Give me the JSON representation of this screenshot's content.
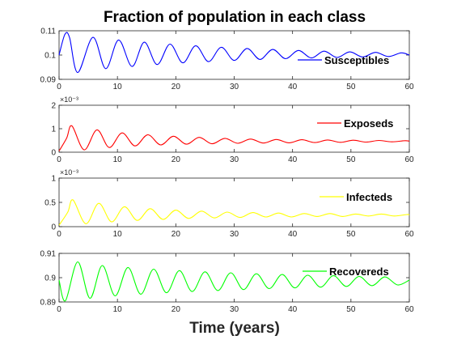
{
  "figure": {
    "title": "Fraction of population in each class",
    "xlabel": "Time (years)"
  },
  "chart_data": [
    {
      "type": "line",
      "title": "",
      "xlabel": "",
      "ylabel": "",
      "xlim": [
        0,
        60
      ],
      "ylim": [
        0.09,
        0.11
      ],
      "x_ticks": [
        "0",
        "10",
        "20",
        "30",
        "40",
        "50",
        "60"
      ],
      "y_ticks": [
        "0.09",
        "0.1",
        "0.11"
      ],
      "y_exponent_label": "",
      "grid": false,
      "legend_position": "right",
      "series": [
        {
          "name": "Susceptibles",
          "color": "#0000ff",
          "x": [
            0,
            1.0,
            1.8,
            3.2,
            5.8,
            8.0,
            10.2,
            12.5,
            14.6,
            16.8,
            19.0,
            21.2,
            23.4,
            25.6,
            27.8,
            30.0,
            32.2,
            34.4,
            36.6,
            38.8,
            41.0,
            43.2,
            45.4,
            47.6,
            49.8,
            52.0,
            54.2,
            56.4,
            58.6,
            60
          ],
          "values": [
            0.1,
            0.1085,
            0.1072,
            0.0928,
            0.1073,
            0.0944,
            0.1062,
            0.0953,
            0.1053,
            0.0961,
            0.1045,
            0.0968,
            0.1038,
            0.0973,
            0.1032,
            0.0978,
            0.1027,
            0.0982,
            0.1023,
            0.0985,
            0.1019,
            0.0988,
            0.1016,
            0.099,
            0.1013,
            0.0992,
            0.1011,
            0.0994,
            0.1009,
            0.1
          ]
        }
      ]
    },
    {
      "type": "line",
      "title": "",
      "xlabel": "",
      "ylabel": "",
      "xlim": [
        0,
        60
      ],
      "ylim": [
        0,
        2
      ],
      "x_ticks": [
        "0",
        "10",
        "20",
        "30",
        "40",
        "50",
        "60"
      ],
      "y_ticks": [
        "0",
        "1",
        "2"
      ],
      "y_exponent_label": "×10⁻³",
      "grid": false,
      "legend_position": "top-right",
      "series": [
        {
          "name": "Exposeds",
          "color": "#ff0000",
          "x": [
            0,
            1.3,
            2.2,
            4.3,
            6.5,
            8.6,
            10.8,
            13.0,
            15.2,
            17.4,
            19.6,
            21.8,
            24.0,
            26.2,
            28.4,
            30.6,
            32.8,
            35.0,
            37.2,
            39.4,
            41.6,
            43.8,
            46.0,
            48.2,
            50.4,
            52.6,
            54.8,
            57.0,
            59.2,
            60
          ],
          "values": [
            0.05,
            0.6,
            1.12,
            0.1,
            0.95,
            0.2,
            0.82,
            0.27,
            0.74,
            0.31,
            0.68,
            0.34,
            0.63,
            0.36,
            0.59,
            0.38,
            0.56,
            0.39,
            0.54,
            0.4,
            0.53,
            0.41,
            0.52,
            0.42,
            0.51,
            0.43,
            0.5,
            0.44,
            0.49,
            0.47
          ]
        }
      ]
    },
    {
      "type": "line",
      "title": "",
      "xlabel": "",
      "ylabel": "",
      "xlim": [
        0,
        60
      ],
      "ylim": [
        0,
        1
      ],
      "x_ticks": [
        "0",
        "10",
        "20",
        "30",
        "40",
        "50",
        "60"
      ],
      "y_ticks": [
        "0",
        "0.5",
        "1"
      ],
      "y_exponent_label": "×10⁻³",
      "grid": false,
      "legend_position": "top-right",
      "series": [
        {
          "name": "Infecteds",
          "color": "#ffff00",
          "x": [
            0,
            1.5,
            2.4,
            4.6,
            6.8,
            9.0,
            11.2,
            13.4,
            15.6,
            17.8,
            20.0,
            22.2,
            24.4,
            26.6,
            28.8,
            31.0,
            33.2,
            35.4,
            37.6,
            39.8,
            42.0,
            44.2,
            46.4,
            48.6,
            50.8,
            53.0,
            55.2,
            57.4,
            59.6,
            60
          ],
          "values": [
            0.03,
            0.3,
            0.55,
            0.06,
            0.48,
            0.1,
            0.41,
            0.13,
            0.37,
            0.15,
            0.34,
            0.17,
            0.32,
            0.18,
            0.3,
            0.19,
            0.29,
            0.2,
            0.28,
            0.2,
            0.27,
            0.21,
            0.27,
            0.21,
            0.26,
            0.22,
            0.26,
            0.22,
            0.25,
            0.24
          ]
        }
      ]
    },
    {
      "type": "line",
      "title": "",
      "xlabel": "",
      "ylabel": "",
      "xlim": [
        0,
        60
      ],
      "ylim": [
        0.89,
        0.91
      ],
      "x_ticks": [
        "0",
        "10",
        "20",
        "30",
        "40",
        "50",
        "60"
      ],
      "y_ticks": [
        "0.89",
        "0.9",
        "0.91"
      ],
      "y_exponent_label": "",
      "grid": false,
      "legend_position": "right",
      "series": [
        {
          "name": "Recovereds",
          "color": "#00ff00",
          "x": [
            0,
            1.1,
            3.2,
            5.3,
            7.4,
            9.6,
            11.8,
            14.0,
            16.2,
            18.4,
            20.6,
            22.8,
            25.0,
            27.2,
            29.4,
            31.6,
            33.8,
            36.0,
            38.2,
            40.4,
            42.6,
            44.8,
            47.0,
            49.2,
            51.4,
            53.6,
            55.8,
            58.0,
            60
          ],
          "values": [
            0.899,
            0.8905,
            0.9065,
            0.8915,
            0.905,
            0.8925,
            0.9042,
            0.8932,
            0.9035,
            0.8938,
            0.9029,
            0.8943,
            0.9024,
            0.8947,
            0.902,
            0.8951,
            0.9016,
            0.8955,
            0.9013,
            0.8958,
            0.901,
            0.8961,
            0.9008,
            0.8964,
            0.9005,
            0.8967,
            0.9003,
            0.897,
            0.899
          ]
        }
      ]
    }
  ]
}
